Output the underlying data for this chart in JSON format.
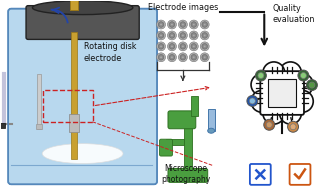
{
  "background_color": "#ffffff",
  "text_electrode_images": "Electrode images",
  "text_microscope": "Microscope\nphotography",
  "text_quality": "Quality\nevaluation",
  "text_rotating": "Rotating disk\nelectrode",
  "liquid_color": "#b8d8ee",
  "liquid_edge_color": "#5588bb",
  "glass_edge_color": "#5588bb",
  "cylinder_top_color": "#555555",
  "cylinder_body_color": "#666666",
  "cylinder_gold_color": "#c8a030",
  "electrode_dot_color": "#888888",
  "microscope_color": "#4a9e3f",
  "red_dashed_color": "#cc2222",
  "blue_arrow_color": "#2244aa",
  "cross_color": "#2255cc",
  "check_color": "#cc5511",
  "chip_line_color": "#111111",
  "node_blue_dark": "#2255aa",
  "node_blue_light": "#88bbdd",
  "node_green_dark": "#336633",
  "node_green_mid": "#559944",
  "node_green_light": "#88cc77",
  "node_orange": "#cc8844",
  "node_brown": "#aa6633",
  "figsize": [
    3.34,
    1.89
  ],
  "dpi": 100
}
